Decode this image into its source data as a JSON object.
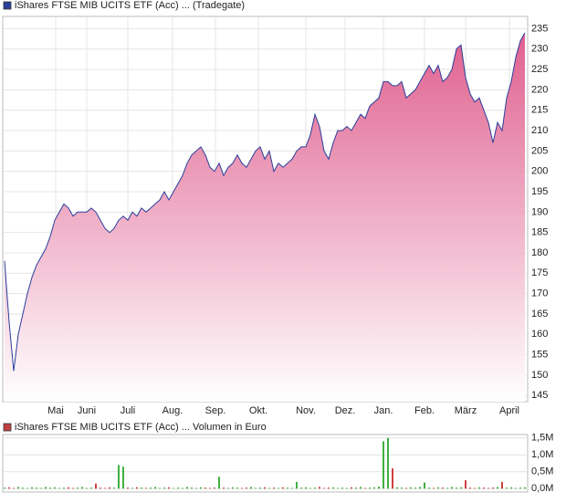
{
  "chart_data": [
    {
      "type": "area",
      "series": [
        {
          "name": "iShares FTSE MIB UCITS ETF (Acc) ... (Tradegate)",
          "color": "#2a3f9a",
          "fill_top": "#e0608f",
          "values": [
            178,
            163,
            151,
            160,
            165,
            170,
            174,
            177,
            179,
            181,
            184,
            188,
            190,
            192,
            191,
            189,
            190,
            190,
            190,
            191,
            190,
            188,
            186,
            185,
            186,
            188,
            189,
            188,
            190,
            189,
            191,
            190,
            191,
            192,
            193,
            195,
            193,
            195,
            197,
            199,
            202,
            204,
            205,
            206,
            204,
            201,
            200,
            202,
            199,
            201,
            202,
            204,
            202,
            201,
            203,
            205,
            206,
            203,
            205,
            200,
            202,
            201,
            202,
            203,
            205,
            206,
            206,
            209,
            214,
            211,
            205,
            203,
            207,
            210,
            210,
            211,
            210,
            212,
            214,
            213,
            216,
            217,
            218,
            222,
            222,
            221,
            221,
            222,
            218,
            219,
            220,
            222,
            224,
            226,
            224,
            226,
            222,
            223,
            225,
            230,
            231,
            223,
            219,
            217,
            218,
            215,
            212,
            207,
            212,
            210,
            218,
            222,
            228,
            232,
            234
          ]
        }
      ],
      "xlim": [
        -0.4,
        114.6
      ],
      "xticks": [
        {
          "value": 11.2,
          "label": "Mai"
        },
        {
          "value": 18,
          "label": "Juni"
        },
        {
          "value": 27,
          "label": "Juli"
        },
        {
          "value": 36.8,
          "label": "Aug."
        },
        {
          "value": 46.2,
          "label": "Sep."
        },
        {
          "value": 55.6,
          "label": "Okt."
        },
        {
          "value": 66,
          "label": "Nov."
        },
        {
          "value": 74.6,
          "label": "Dez."
        },
        {
          "value": 83,
          "label": "Jan."
        },
        {
          "value": 92,
          "label": "Feb."
        },
        {
          "value": 101,
          "label": "März"
        },
        {
          "value": 110.6,
          "label": "April"
        }
      ],
      "ylim": [
        143.5,
        238
      ],
      "yticks": [
        145,
        150,
        155,
        160,
        165,
        170,
        175,
        180,
        185,
        190,
        195,
        200,
        205,
        210,
        215,
        220,
        225,
        230,
        235
      ],
      "grid": true
    },
    {
      "type": "bar",
      "series": [
        {
          "name": "iShares FTSE MIB UCITS ETF (Acc) ... Volumen in Euro",
          "color": "#c04040",
          "values": [
            30000,
            40000,
            20000,
            50000,
            30000,
            20000,
            40000,
            30000,
            20000,
            50000,
            30000,
            40000,
            20000,
            30000,
            40000,
            20000,
            30000,
            50000,
            20000,
            30000,
            150000,
            30000,
            20000,
            40000,
            30000,
            700000,
            650000,
            30000,
            20000,
            40000,
            30000,
            20000,
            30000,
            50000,
            20000,
            30000,
            40000,
            20000,
            30000,
            20000,
            50000,
            30000,
            20000,
            40000,
            30000,
            20000,
            30000,
            350000,
            30000,
            20000,
            40000,
            30000,
            20000,
            30000,
            50000,
            20000,
            30000,
            40000,
            20000,
            30000,
            20000,
            40000,
            30000,
            20000,
            200000,
            30000,
            40000,
            20000,
            30000,
            50000,
            20000,
            30000,
            40000,
            20000,
            30000,
            20000,
            40000,
            30000,
            50000,
            20000,
            30000,
            40000,
            60000,
            1400000,
            1500000,
            600000,
            40000,
            30000,
            20000,
            40000,
            30000,
            50000,
            180000,
            30000,
            20000,
            40000,
            30000,
            20000,
            50000,
            30000,
            40000,
            250000,
            30000,
            20000,
            40000,
            30000,
            20000,
            30000,
            50000,
            200000,
            30000,
            40000,
            20000,
            30000,
            40000
          ]
        }
      ],
      "up_color": "#40b040",
      "down_color": "#d04040",
      "xlim": [
        -0.4,
        114.6
      ],
      "ylim": [
        -100000,
        1600000
      ],
      "yticks": [
        {
          "value": 0,
          "label": "0,0M"
        },
        {
          "value": 500000,
          "label": "0,5M"
        },
        {
          "value": 1000000,
          "label": "1,0M"
        },
        {
          "value": 1500000,
          "label": "1,5M"
        }
      ],
      "grid": true
    }
  ]
}
